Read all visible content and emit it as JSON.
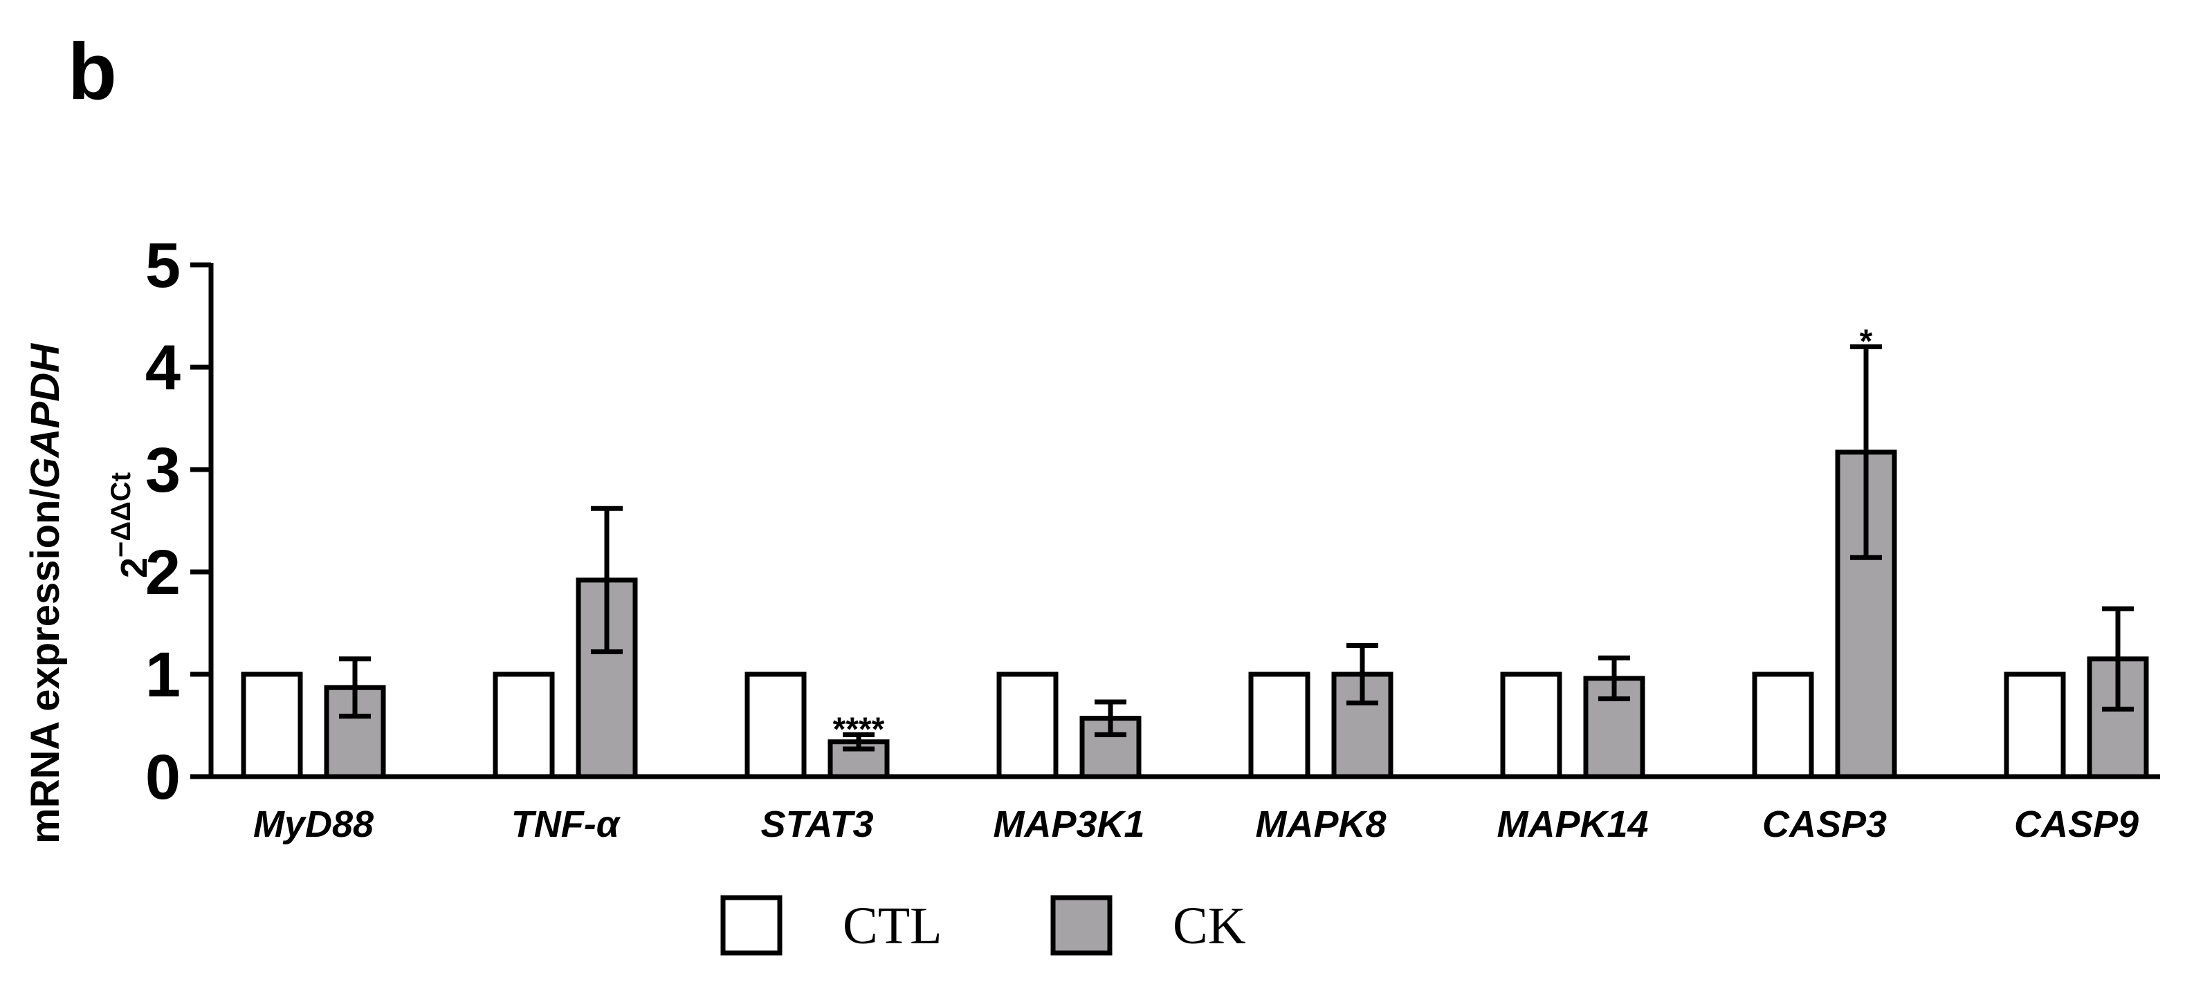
{
  "panel_label": "b",
  "chart_data": {
    "type": "bar",
    "title": "",
    "xlabel": "",
    "ylabel": "mRNA expression/GAPDH",
    "ylabel_parts": {
      "plain": "mRNA expression/",
      "italic": "GAPDH"
    },
    "ylabel_secondary": {
      "base": "2",
      "exponent": "−ΔΔCt"
    },
    "ylim": [
      0,
      5
    ],
    "yticks": [
      "0",
      "1",
      "2",
      "3",
      "4",
      "5"
    ],
    "categories": [
      "MyD88",
      "TNF-α",
      "STAT3",
      "MAP3K1",
      "MAPK8",
      "MAPK14",
      "CASP3",
      "CASP9"
    ],
    "series": [
      {
        "name": "CTL",
        "fill": "#ffffff",
        "values": [
          1,
          1,
          1,
          1,
          1,
          1,
          1,
          1
        ],
        "errors": [
          null,
          null,
          null,
          null,
          null,
          null,
          null,
          null
        ]
      },
      {
        "name": "CK",
        "fill": "#a5a3a6",
        "values": [
          0.87,
          1.92,
          0.34,
          0.57,
          1.0,
          0.96,
          3.17,
          1.15
        ],
        "errors": [
          0.28,
          0.7,
          0.07,
          0.16,
          0.28,
          0.2,
          1.03,
          0.49
        ]
      }
    ],
    "annotations": [
      {
        "category_index": 2,
        "series": "CK",
        "text": "****"
      },
      {
        "category_index": 6,
        "series": "CK",
        "text": "*"
      }
    ],
    "legend": {
      "position": "bottom-center",
      "entries": [
        "CTL",
        "CK"
      ]
    }
  }
}
